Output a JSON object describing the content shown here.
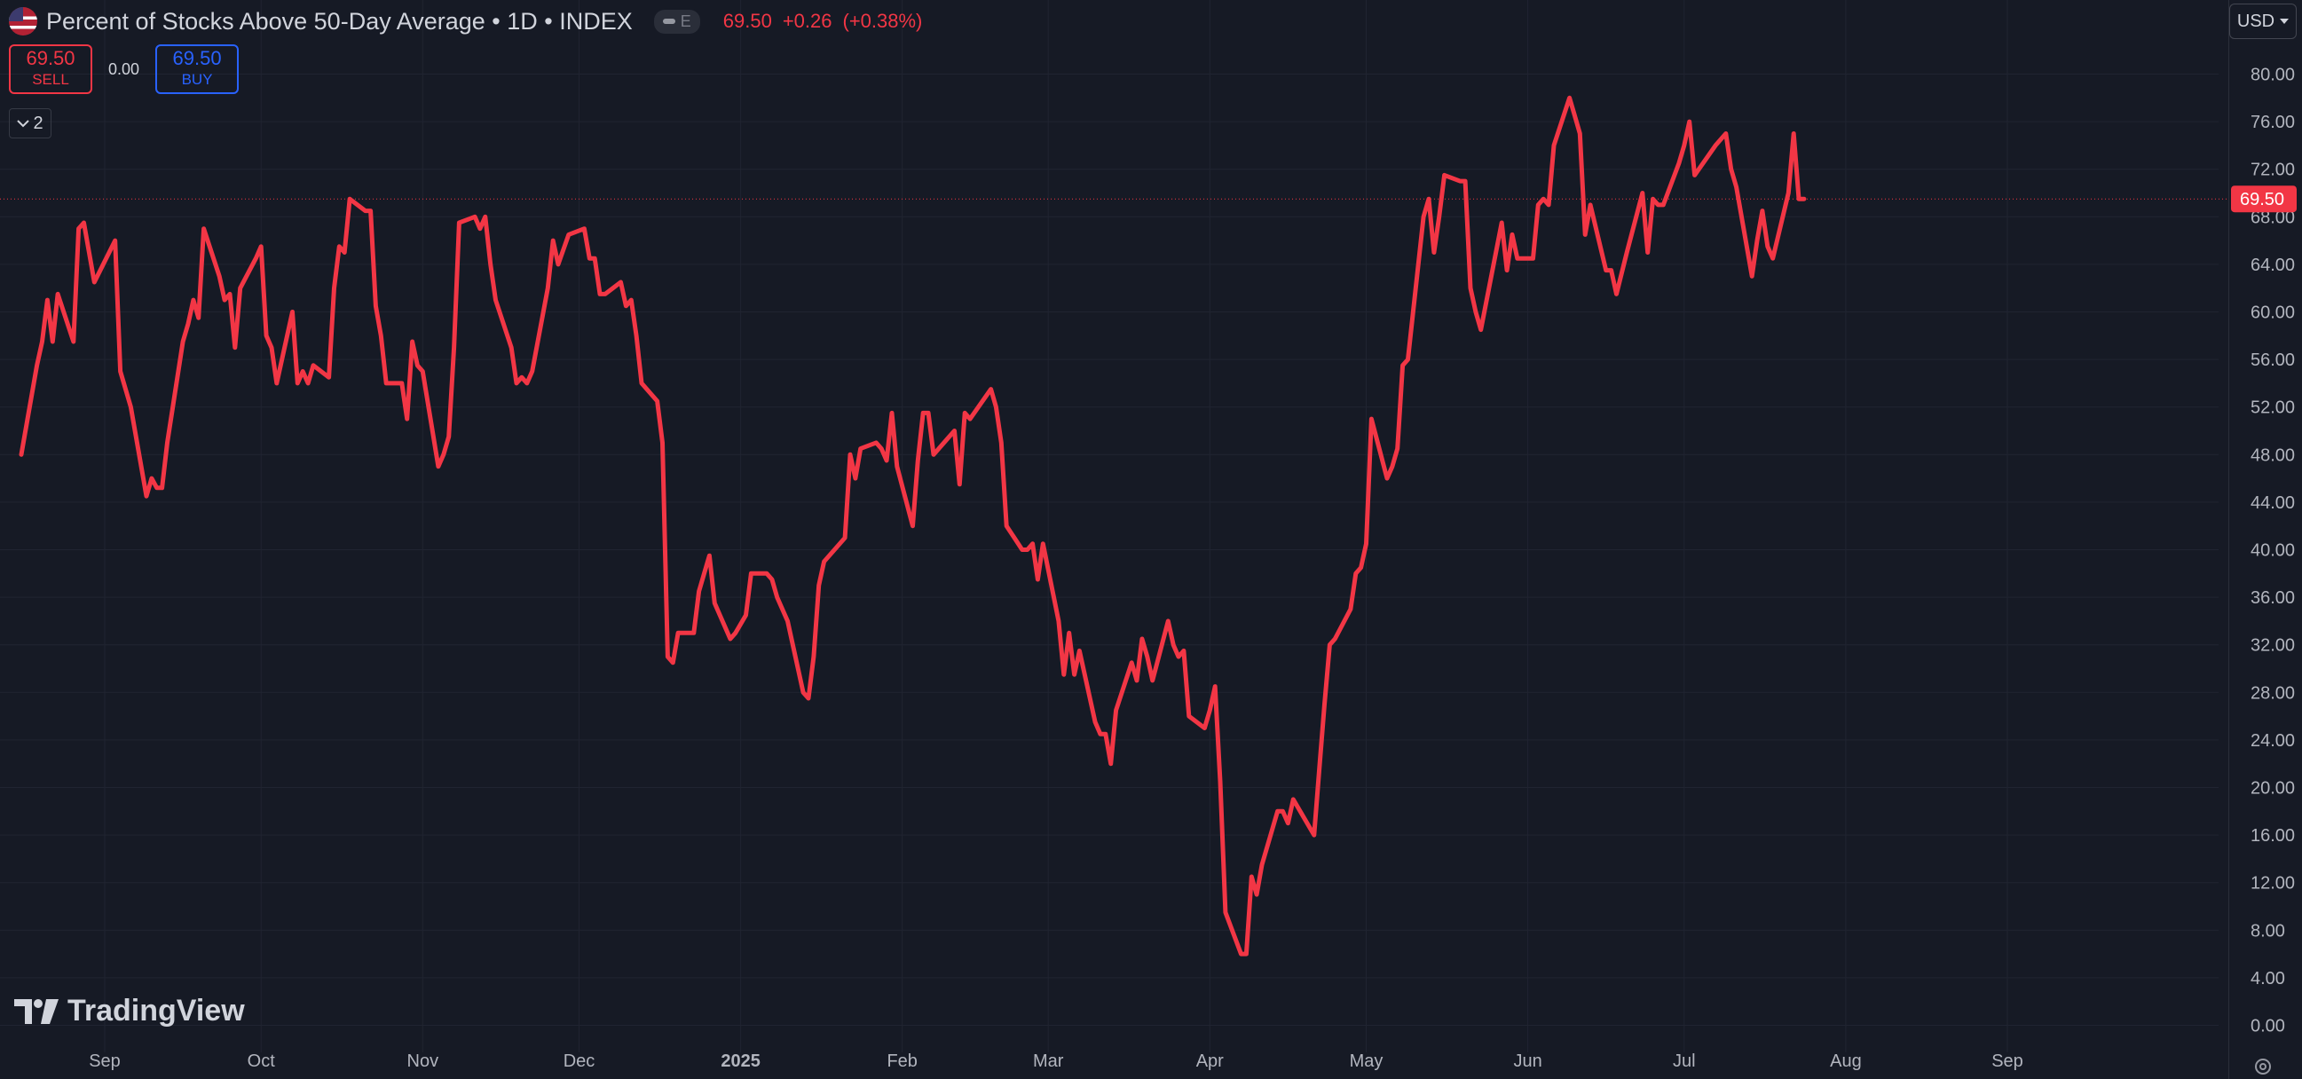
{
  "header": {
    "title": "Percent of Stocks Above 50-Day Average • 1D • INDEX",
    "pill_letter": "E",
    "last": "69.50",
    "change": "+0.26",
    "change_pct": "(+0.38%)"
  },
  "trade": {
    "sell_price": "69.50",
    "sell_label": "SELL",
    "spread": "0.00",
    "buy_price": "69.50",
    "buy_label": "BUY"
  },
  "indicators_count": "2",
  "currency": "USD",
  "brand": "TradingView",
  "colors": {
    "line": "#f23645",
    "background": "#161a25",
    "grid": "#202431",
    "buy": "#2962ff"
  },
  "chart_data": {
    "type": "line",
    "title": "Percent of Stocks Above 50-Day Average",
    "ylim": [
      -2,
      84
    ],
    "yticks": [
      "0.00",
      "4.00",
      "8.00",
      "12.00",
      "16.00",
      "20.00",
      "24.00",
      "28.00",
      "32.00",
      "36.00",
      "40.00",
      "44.00",
      "48.00",
      "52.00",
      "56.00",
      "60.00",
      "64.00",
      "68.00",
      "72.00",
      "76.00",
      "80.00"
    ],
    "xticks": [
      "Sep",
      "Oct",
      "Nov",
      "Dec",
      "2025",
      "Feb",
      "Mar",
      "Apr",
      "May",
      "Jun",
      "Jul",
      "Aug",
      "Sep"
    ],
    "xtick_dates": [
      "2024-09-01",
      "2024-10-01",
      "2024-11-01",
      "2024-12-01",
      "2025-01-01",
      "2025-02-01",
      "2025-03-01",
      "2025-04-01",
      "2025-05-01",
      "2025-06-01",
      "2025-07-01",
      "2025-08-01",
      "2025-09-01"
    ],
    "last_value_label": "69.50",
    "grid": true,
    "series": [
      {
        "values": [
          [
            "2024-08-16",
            48.0
          ],
          [
            "2024-08-19",
            55.5
          ],
          [
            "2024-08-20",
            57.5
          ],
          [
            "2024-08-21",
            61.0
          ],
          [
            "2024-08-22",
            57.5
          ],
          [
            "2024-08-23",
            61.5
          ],
          [
            "2024-08-26",
            57.5
          ],
          [
            "2024-08-27",
            67.0
          ],
          [
            "2024-08-28",
            67.5
          ],
          [
            "2024-08-29",
            65.0
          ],
          [
            "2024-08-30",
            62.5
          ],
          [
            "2024-09-03",
            66.0
          ],
          [
            "2024-09-04",
            55.0
          ],
          [
            "2024-09-05",
            53.5
          ],
          [
            "2024-09-06",
            52.0
          ],
          [
            "2024-09-09",
            44.5
          ],
          [
            "2024-09-10",
            46.0
          ],
          [
            "2024-09-11",
            45.2
          ],
          [
            "2024-09-12",
            45.2
          ],
          [
            "2024-09-13",
            49.0
          ],
          [
            "2024-09-16",
            57.5
          ],
          [
            "2024-09-17",
            59.0
          ],
          [
            "2024-09-18",
            61.0
          ],
          [
            "2024-09-19",
            59.5
          ],
          [
            "2024-09-20",
            67.0
          ],
          [
            "2024-09-23",
            63.0
          ],
          [
            "2024-09-24",
            61.0
          ],
          [
            "2024-09-25",
            61.5
          ],
          [
            "2024-09-26",
            57.0
          ],
          [
            "2024-09-27",
            62.0
          ],
          [
            "2024-09-30",
            64.5
          ],
          [
            "2024-10-01",
            65.5
          ],
          [
            "2024-10-02",
            58.0
          ],
          [
            "2024-10-03",
            57.0
          ],
          [
            "2024-10-04",
            54.0
          ],
          [
            "2024-10-07",
            60.0
          ],
          [
            "2024-10-08",
            54.0
          ],
          [
            "2024-10-09",
            55.0
          ],
          [
            "2024-10-10",
            54.0
          ],
          [
            "2024-10-11",
            55.5
          ],
          [
            "2024-10-14",
            54.5
          ],
          [
            "2024-10-15",
            62.0
          ],
          [
            "2024-10-16",
            65.5
          ],
          [
            "2024-10-17",
            65.0
          ],
          [
            "2024-10-18",
            69.5
          ],
          [
            "2024-10-21",
            68.5
          ],
          [
            "2024-10-22",
            68.5
          ],
          [
            "2024-10-23",
            60.5
          ],
          [
            "2024-10-24",
            58.0
          ],
          [
            "2024-10-25",
            54.0
          ],
          [
            "2024-10-28",
            54.0
          ],
          [
            "2024-10-29",
            51.0
          ],
          [
            "2024-10-30",
            57.5
          ],
          [
            "2024-10-31",
            55.5
          ],
          [
            "2024-11-01",
            55.0
          ],
          [
            "2024-11-04",
            47.0
          ],
          [
            "2024-11-05",
            48.0
          ],
          [
            "2024-11-06",
            49.5
          ],
          [
            "2024-11-07",
            57.0
          ],
          [
            "2024-11-08",
            67.5
          ],
          [
            "2024-11-11",
            68.0
          ],
          [
            "2024-11-12",
            67.0
          ],
          [
            "2024-11-13",
            68.0
          ],
          [
            "2024-11-14",
            64.0
          ],
          [
            "2024-11-15",
            61.0
          ],
          [
            "2024-11-18",
            57.0
          ],
          [
            "2024-11-19",
            54.0
          ],
          [
            "2024-11-20",
            54.5
          ],
          [
            "2024-11-21",
            54.0
          ],
          [
            "2024-11-22",
            55.0
          ],
          [
            "2024-11-25",
            62.0
          ],
          [
            "2024-11-26",
            66.0
          ],
          [
            "2024-11-27",
            64.0
          ],
          [
            "2024-11-29",
            66.5
          ],
          [
            "2024-12-02",
            67.0
          ],
          [
            "2024-12-03",
            64.5
          ],
          [
            "2024-12-04",
            64.5
          ],
          [
            "2024-12-05",
            61.5
          ],
          [
            "2024-12-06",
            61.5
          ],
          [
            "2024-12-09",
            62.5
          ],
          [
            "2024-12-10",
            60.5
          ],
          [
            "2024-12-11",
            61.0
          ],
          [
            "2024-12-12",
            58.0
          ],
          [
            "2024-12-13",
            54.0
          ],
          [
            "2024-12-16",
            52.5
          ],
          [
            "2024-12-17",
            49.0
          ],
          [
            "2024-12-18",
            31.0
          ],
          [
            "2024-12-19",
            30.5
          ],
          [
            "2024-12-20",
            33.0
          ],
          [
            "2024-12-23",
            33.0
          ],
          [
            "2024-12-24",
            36.5
          ],
          [
            "2024-12-26",
            39.5
          ],
          [
            "2024-12-27",
            35.5
          ],
          [
            "2024-12-30",
            32.5
          ],
          [
            "2024-12-31",
            33.0
          ],
          [
            "2025-01-02",
            34.5
          ],
          [
            "2025-01-03",
            38.0
          ],
          [
            "2025-01-06",
            38.0
          ],
          [
            "2025-01-07",
            37.5
          ],
          [
            "2025-01-08",
            36.0
          ],
          [
            "2025-01-10",
            34.0
          ],
          [
            "2025-01-13",
            28.0
          ],
          [
            "2025-01-14",
            27.5
          ],
          [
            "2025-01-15",
            31.0
          ],
          [
            "2025-01-16",
            37.0
          ],
          [
            "2025-01-17",
            39.0
          ],
          [
            "2025-01-21",
            41.0
          ],
          [
            "2025-01-22",
            48.0
          ],
          [
            "2025-01-23",
            46.0
          ],
          [
            "2025-01-24",
            48.5
          ],
          [
            "2025-01-27",
            49.0
          ],
          [
            "2025-01-28",
            48.5
          ],
          [
            "2025-01-29",
            47.5
          ],
          [
            "2025-01-30",
            51.5
          ],
          [
            "2025-01-31",
            47.0
          ],
          [
            "2025-02-03",
            42.0
          ],
          [
            "2025-02-04",
            47.5
          ],
          [
            "2025-02-05",
            51.5
          ],
          [
            "2025-02-06",
            51.5
          ],
          [
            "2025-02-07",
            48.0
          ],
          [
            "2025-02-10",
            49.5
          ],
          [
            "2025-02-11",
            50.0
          ],
          [
            "2025-02-12",
            45.5
          ],
          [
            "2025-02-13",
            51.5
          ],
          [
            "2025-02-14",
            51.0
          ],
          [
            "2025-02-18",
            53.5
          ],
          [
            "2025-02-19",
            52.0
          ],
          [
            "2025-02-20",
            49.0
          ],
          [
            "2025-02-21",
            42.0
          ],
          [
            "2025-02-24",
            40.0
          ],
          [
            "2025-02-25",
            40.0
          ],
          [
            "2025-02-26",
            40.5
          ],
          [
            "2025-02-27",
            37.5
          ],
          [
            "2025-02-28",
            40.5
          ],
          [
            "2025-03-03",
            34.0
          ],
          [
            "2025-03-04",
            29.5
          ],
          [
            "2025-03-05",
            33.0
          ],
          [
            "2025-03-06",
            29.5
          ],
          [
            "2025-03-07",
            31.5
          ],
          [
            "2025-03-10",
            25.5
          ],
          [
            "2025-03-11",
            24.5
          ],
          [
            "2025-03-12",
            24.5
          ],
          [
            "2025-03-13",
            22.0
          ],
          [
            "2025-03-14",
            26.5
          ],
          [
            "2025-03-17",
            30.5
          ],
          [
            "2025-03-18",
            29.0
          ],
          [
            "2025-03-19",
            32.5
          ],
          [
            "2025-03-20",
            31.0
          ],
          [
            "2025-03-21",
            29.0
          ],
          [
            "2025-03-24",
            34.0
          ],
          [
            "2025-03-25",
            32.0
          ],
          [
            "2025-03-26",
            31.0
          ],
          [
            "2025-03-27",
            31.5
          ],
          [
            "2025-03-28",
            26.0
          ],
          [
            "2025-03-31",
            25.0
          ],
          [
            "2025-04-01",
            26.5
          ],
          [
            "2025-04-02",
            28.5
          ],
          [
            "2025-04-03",
            20.5
          ],
          [
            "2025-04-04",
            9.5
          ],
          [
            "2025-04-07",
            6.0
          ],
          [
            "2025-04-08",
            6.0
          ],
          [
            "2025-04-09",
            12.5
          ],
          [
            "2025-04-10",
            11.0
          ],
          [
            "2025-04-11",
            13.5
          ],
          [
            "2025-04-14",
            18.0
          ],
          [
            "2025-04-15",
            18.0
          ],
          [
            "2025-04-16",
            17.0
          ],
          [
            "2025-04-17",
            19.0
          ],
          [
            "2025-04-21",
            16.0
          ],
          [
            "2025-04-22",
            21.5
          ],
          [
            "2025-04-23",
            27.0
          ],
          [
            "2025-04-24",
            32.0
          ],
          [
            "2025-04-25",
            32.5
          ],
          [
            "2025-04-28",
            35.0
          ],
          [
            "2025-04-29",
            38.0
          ],
          [
            "2025-04-30",
            38.5
          ],
          [
            "2025-05-01",
            40.5
          ],
          [
            "2025-05-02",
            51.0
          ],
          [
            "2025-05-05",
            46.0
          ],
          [
            "2025-05-06",
            47.0
          ],
          [
            "2025-05-07",
            48.5
          ],
          [
            "2025-05-08",
            55.5
          ],
          [
            "2025-05-09",
            56.0
          ],
          [
            "2025-05-12",
            68.0
          ],
          [
            "2025-05-13",
            69.5
          ],
          [
            "2025-05-14",
            65.0
          ],
          [
            "2025-05-15",
            68.0
          ],
          [
            "2025-05-16",
            71.5
          ],
          [
            "2025-05-19",
            71.0
          ],
          [
            "2025-05-20",
            71.0
          ],
          [
            "2025-05-21",
            62.0
          ],
          [
            "2025-05-22",
            60.0
          ],
          [
            "2025-05-23",
            58.5
          ],
          [
            "2025-05-27",
            67.5
          ],
          [
            "2025-05-28",
            63.5
          ],
          [
            "2025-05-29",
            66.5
          ],
          [
            "2025-05-30",
            64.5
          ],
          [
            "2025-06-02",
            64.5
          ],
          [
            "2025-06-03",
            69.0
          ],
          [
            "2025-06-04",
            69.5
          ],
          [
            "2025-06-05",
            69.0
          ],
          [
            "2025-06-06",
            74.0
          ],
          [
            "2025-06-09",
            78.0
          ],
          [
            "2025-06-10",
            76.5
          ],
          [
            "2025-06-11",
            75.0
          ],
          [
            "2025-06-12",
            66.5
          ],
          [
            "2025-06-13",
            69.0
          ],
          [
            "2025-06-16",
            63.5
          ],
          [
            "2025-06-17",
            63.5
          ],
          [
            "2025-06-18",
            61.5
          ],
          [
            "2025-06-20",
            65.0
          ],
          [
            "2025-06-23",
            70.0
          ],
          [
            "2025-06-24",
            65.0
          ],
          [
            "2025-06-25",
            69.5
          ],
          [
            "2025-06-26",
            69.0
          ],
          [
            "2025-06-27",
            69.0
          ],
          [
            "2025-06-30",
            72.5
          ],
          [
            "2025-07-01",
            74.0
          ],
          [
            "2025-07-02",
            76.0
          ],
          [
            "2025-07-03",
            71.5
          ],
          [
            "2025-07-07",
            74.0
          ],
          [
            "2025-07-08",
            74.5
          ],
          [
            "2025-07-09",
            75.0
          ],
          [
            "2025-07-10",
            72.0
          ],
          [
            "2025-07-11",
            70.5
          ],
          [
            "2025-07-14",
            63.0
          ],
          [
            "2025-07-15",
            66.0
          ],
          [
            "2025-07-16",
            68.5
          ],
          [
            "2025-07-17",
            65.5
          ],
          [
            "2025-07-18",
            64.5
          ],
          [
            "2025-07-21",
            70.0
          ],
          [
            "2025-07-22",
            75.0
          ],
          [
            "2025-07-23",
            69.5
          ],
          [
            "2025-07-24",
            69.5
          ]
        ]
      }
    ]
  }
}
